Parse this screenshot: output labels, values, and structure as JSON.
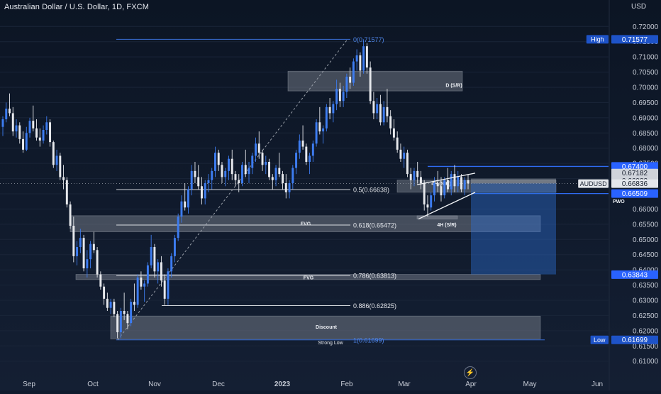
{
  "header": {
    "symbol_title": "Australian Dollar / U.S. Dollar, 1D, FXCM",
    "currency": "USD"
  },
  "chart_data": {
    "type": "candlestick",
    "y_range": [
      0.6055,
      0.7245
    ],
    "y_ticks": [
      "0.72000",
      "0.71500",
      "0.71000",
      "0.70500",
      "0.70000",
      "0.69500",
      "0.69000",
      "0.68500",
      "0.68000",
      "0.67500",
      "0.67000",
      "0.66500",
      "0.66000",
      "0.65500",
      "0.65000",
      "0.64500",
      "0.64000",
      "0.63500",
      "0.63000",
      "0.62500",
      "0.62000",
      "0.61500",
      "0.61000"
    ],
    "x_labels": [
      "Sep",
      "Oct",
      "Nov",
      "Dec",
      "2023",
      "Feb",
      "Mar",
      "Apr",
      "May",
      "Jun"
    ],
    "candles": [
      [
        0.687,
        0.6905,
        0.684,
        0.6895
      ],
      [
        0.6895,
        0.695,
        0.6885,
        0.693
      ],
      [
        0.693,
        0.698,
        0.6905,
        0.6915
      ],
      [
        0.6915,
        0.6935,
        0.684,
        0.6855
      ],
      [
        0.6855,
        0.6895,
        0.6835,
        0.6875
      ],
      [
        0.6875,
        0.6885,
        0.6815,
        0.683
      ],
      [
        0.683,
        0.6855,
        0.6785,
        0.6795
      ],
      [
        0.6795,
        0.687,
        0.679,
        0.685
      ],
      [
        0.685,
        0.69,
        0.6835,
        0.689
      ],
      [
        0.689,
        0.694,
        0.6855,
        0.6865
      ],
      [
        0.6865,
        0.6895,
        0.6825,
        0.6835
      ],
      [
        0.6835,
        0.6865,
        0.6805,
        0.6825
      ],
      [
        0.6825,
        0.6875,
        0.6815,
        0.686
      ],
      [
        0.686,
        0.6905,
        0.6845,
        0.6885
      ],
      [
        0.6885,
        0.6895,
        0.6805,
        0.682
      ],
      [
        0.682,
        0.6825,
        0.6735,
        0.6745
      ],
      [
        0.6745,
        0.6795,
        0.6725,
        0.6775
      ],
      [
        0.6775,
        0.6785,
        0.6695,
        0.6705
      ],
      [
        0.6705,
        0.6745,
        0.6665,
        0.6695
      ],
      [
        0.6695,
        0.6705,
        0.6605,
        0.6615
      ],
      [
        0.6615,
        0.6625,
        0.6535,
        0.6545
      ],
      [
        0.6545,
        0.6575,
        0.6425,
        0.6445
      ],
      [
        0.6445,
        0.6495,
        0.6415,
        0.6475
      ],
      [
        0.6475,
        0.6535,
        0.6455,
        0.6505
      ],
      [
        0.6505,
        0.6515,
        0.6395,
        0.6405
      ],
      [
        0.6405,
        0.6465,
        0.6375,
        0.6435
      ],
      [
        0.6435,
        0.6495,
        0.6405,
        0.6485
      ],
      [
        0.6485,
        0.6525,
        0.6455,
        0.6465
      ],
      [
        0.6465,
        0.6475,
        0.6375,
        0.6385
      ],
      [
        0.6385,
        0.6395,
        0.6335,
        0.6345
      ],
      [
        0.6345,
        0.6355,
        0.6285,
        0.6305
      ],
      [
        0.6305,
        0.6325,
        0.6265,
        0.6275
      ],
      [
        0.6275,
        0.6305,
        0.6255,
        0.6295
      ],
      [
        0.6295,
        0.6305,
        0.6245,
        0.6255
      ],
      [
        0.6255,
        0.6265,
        0.6175,
        0.6195
      ],
      [
        0.6195,
        0.6275,
        0.6175,
        0.6265
      ],
      [
        0.6265,
        0.6325,
        0.6235,
        0.6255
      ],
      [
        0.6255,
        0.6265,
        0.6205,
        0.6225
      ],
      [
        0.6225,
        0.6305,
        0.6215,
        0.6295
      ],
      [
        0.6295,
        0.6355,
        0.6265,
        0.6285
      ],
      [
        0.6285,
        0.6385,
        0.6275,
        0.6375
      ],
      [
        0.6375,
        0.6395,
        0.6335,
        0.6345
      ],
      [
        0.6345,
        0.6365,
        0.6295,
        0.6355
      ],
      [
        0.6355,
        0.6425,
        0.6345,
        0.6415
      ],
      [
        0.6415,
        0.6515,
        0.6405,
        0.6475
      ],
      [
        0.6475,
        0.6485,
        0.6375,
        0.6395
      ],
      [
        0.6395,
        0.6435,
        0.6355,
        0.6425
      ],
      [
        0.6425,
        0.6445,
        0.6345,
        0.6365
      ],
      [
        0.6365,
        0.6385,
        0.6285,
        0.6305
      ],
      [
        0.6305,
        0.6405,
        0.6285,
        0.6395
      ],
      [
        0.6395,
        0.6455,
        0.6375,
        0.6445
      ],
      [
        0.6445,
        0.6515,
        0.6425,
        0.6505
      ],
      [
        0.6505,
        0.6585,
        0.6495,
        0.6575
      ],
      [
        0.6575,
        0.6645,
        0.6555,
        0.6625
      ],
      [
        0.6625,
        0.6685,
        0.6595,
        0.6605
      ],
      [
        0.6605,
        0.6675,
        0.6585,
        0.6665
      ],
      [
        0.6665,
        0.6745,
        0.6645,
        0.6725
      ],
      [
        0.6725,
        0.6755,
        0.6685,
        0.6705
      ],
      [
        0.6705,
        0.6745,
        0.6665,
        0.6675
      ],
      [
        0.6675,
        0.6705,
        0.6615,
        0.6635
      ],
      [
        0.6635,
        0.6695,
        0.6615,
        0.6685
      ],
      [
        0.6685,
        0.6715,
        0.6655,
        0.6695
      ],
      [
        0.6695,
        0.6735,
        0.6665,
        0.6725
      ],
      [
        0.6725,
        0.6805,
        0.6705,
        0.6785
      ],
      [
        0.6785,
        0.6795,
        0.6725,
        0.6745
      ],
      [
        0.6745,
        0.6755,
        0.6685,
        0.6705
      ],
      [
        0.6705,
        0.6735,
        0.6675,
        0.6725
      ],
      [
        0.6725,
        0.6775,
        0.6695,
        0.6765
      ],
      [
        0.6765,
        0.6795,
        0.6695,
        0.6715
      ],
      [
        0.6715,
        0.6725,
        0.6675,
        0.6695
      ],
      [
        0.6695,
        0.6715,
        0.6655,
        0.6685
      ],
      [
        0.6685,
        0.6755,
        0.6675,
        0.6745
      ],
      [
        0.6745,
        0.6795,
        0.6705,
        0.6715
      ],
      [
        0.6715,
        0.6755,
        0.6685,
        0.6735
      ],
      [
        0.6735,
        0.6785,
        0.6715,
        0.6775
      ],
      [
        0.6775,
        0.6835,
        0.6755,
        0.6815
      ],
      [
        0.6815,
        0.6855,
        0.6765,
        0.6785
      ],
      [
        0.6785,
        0.6795,
        0.6725,
        0.6745
      ],
      [
        0.6745,
        0.6775,
        0.6715,
        0.6755
      ],
      [
        0.6755,
        0.6765,
        0.6695,
        0.6705
      ],
      [
        0.6705,
        0.6715,
        0.6665,
        0.6695
      ],
      [
        0.6695,
        0.6745,
        0.6675,
        0.6735
      ],
      [
        0.6735,
        0.6785,
        0.6705,
        0.6715
      ],
      [
        0.6715,
        0.6725,
        0.6665,
        0.6685
      ],
      [
        0.6685,
        0.6715,
        0.6635,
        0.6655
      ],
      [
        0.6655,
        0.6695,
        0.6635,
        0.6685
      ],
      [
        0.6685,
        0.6745,
        0.6665,
        0.6735
      ],
      [
        0.6735,
        0.6795,
        0.6715,
        0.6785
      ],
      [
        0.6785,
        0.6845,
        0.6765,
        0.6825
      ],
      [
        0.6825,
        0.6875,
        0.6795,
        0.6805
      ],
      [
        0.6805,
        0.6815,
        0.6745,
        0.6755
      ],
      [
        0.6755,
        0.6785,
        0.6715,
        0.6775
      ],
      [
        0.6775,
        0.6825,
        0.6755,
        0.6815
      ],
      [
        0.6815,
        0.6895,
        0.6805,
        0.6885
      ],
      [
        0.6885,
        0.6935,
        0.6845,
        0.6855
      ],
      [
        0.6855,
        0.6875,
        0.6815,
        0.6865
      ],
      [
        0.6865,
        0.6945,
        0.6855,
        0.6935
      ],
      [
        0.6935,
        0.6965,
        0.6895,
        0.6915
      ],
      [
        0.6915,
        0.6955,
        0.6885,
        0.6945
      ],
      [
        0.6945,
        0.7025,
        0.6925,
        0.6995
      ],
      [
        0.6995,
        0.7015,
        0.6935,
        0.6955
      ],
      [
        0.6955,
        0.7005,
        0.6935,
        0.6985
      ],
      [
        0.6985,
        0.7045,
        0.6965,
        0.7035
      ],
      [
        0.7035,
        0.7065,
        0.6995,
        0.7015
      ],
      [
        0.7015,
        0.7095,
        0.7005,
        0.7085
      ],
      [
        0.7085,
        0.7125,
        0.7055,
        0.7105
      ],
      [
        0.7105,
        0.7115,
        0.7035,
        0.7055
      ],
      [
        0.7055,
        0.7158,
        0.7045,
        0.7135
      ],
      [
        0.7135,
        0.7145,
        0.7045,
        0.7065
      ],
      [
        0.7065,
        0.7085,
        0.6945,
        0.6955
      ],
      [
        0.6955,
        0.6985,
        0.6895,
        0.6915
      ],
      [
        0.6915,
        0.6965,
        0.6895,
        0.6945
      ],
      [
        0.6945,
        0.6975,
        0.6875,
        0.6885
      ],
      [
        0.6885,
        0.6955,
        0.6875,
        0.6935
      ],
      [
        0.6935,
        0.6995,
        0.6885,
        0.6905
      ],
      [
        0.6905,
        0.6925,
        0.6845,
        0.6865
      ],
      [
        0.6865,
        0.6895,
        0.6825,
        0.6835
      ],
      [
        0.6835,
        0.6855,
        0.6785,
        0.6795
      ],
      [
        0.6795,
        0.6815,
        0.6755,
        0.6765
      ],
      [
        0.6765,
        0.6805,
        0.6735,
        0.6785
      ],
      [
        0.6785,
        0.6795,
        0.6705,
        0.6715
      ],
      [
        0.6715,
        0.6735,
        0.6665,
        0.6695
      ],
      [
        0.6695,
        0.6735,
        0.6675,
        0.6725
      ],
      [
        0.6725,
        0.6755,
        0.6685,
        0.6705
      ],
      [
        0.6705,
        0.6725,
        0.6665,
        0.6685
      ],
      [
        0.6685,
        0.6695,
        0.6595,
        0.6615
      ],
      [
        0.6615,
        0.6645,
        0.6575,
        0.6605
      ],
      [
        0.6605,
        0.6655,
        0.6595,
        0.6645
      ],
      [
        0.6645,
        0.6705,
        0.6625,
        0.6685
      ],
      [
        0.6685,
        0.6725,
        0.6655,
        0.6675
      ],
      [
        0.6675,
        0.6705,
        0.6625,
        0.6645
      ],
      [
        0.6645,
        0.6705,
        0.6635,
        0.6695
      ],
      [
        0.6695,
        0.6735,
        0.6655,
        0.6665
      ],
      [
        0.6665,
        0.6725,
        0.6645,
        0.6715
      ],
      [
        0.6715,
        0.6745,
        0.6655,
        0.6675
      ],
      [
        0.6675,
        0.6725,
        0.6655,
        0.6705
      ],
      [
        0.6705,
        0.6715,
        0.6655,
        0.6665
      ],
      [
        0.6665,
        0.6705,
        0.6645,
        0.6695
      ],
      [
        0.6695,
        0.6715,
        0.6665,
        0.6684
      ]
    ],
    "annotations": {
      "fib_levels": [
        {
          "label": "0(0.71577)",
          "price": 0.71577
        },
        {
          "label": "0.5(0.66638)",
          "price": 0.66638
        },
        {
          "label": "0.618(0.65472)",
          "price": 0.65472
        },
        {
          "label": "0.786(0.63813)",
          "price": 0.63813
        },
        {
          "label": "0.886(0.62825)",
          "price": 0.62825
        },
        {
          "label": "1(0.61699)",
          "price": 0.61699
        }
      ],
      "zones": [
        {
          "label": "D (S/R)",
          "top": 0.7053,
          "bottom": 0.6988
        },
        {
          "label": "FVG",
          "top": 0.6578,
          "bottom": 0.6525
        },
        {
          "label": "FVG",
          "top": 0.6385,
          "bottom": 0.6368
        },
        {
          "label": "Discount",
          "top": 0.6248,
          "bottom": 0.6173
        },
        {
          "label": "4H (S/R)",
          "top": 0.6695,
          "bottom": 0.6655
        },
        {
          "label": "4H (S/R)",
          "top": 0.6578,
          "bottom": 0.6567
        }
      ],
      "text_labels": [
        "Strong Low",
        "PWO"
      ],
      "horizontal_levels": [
        0.674,
        0.66509
      ],
      "position_box": {
        "entry": 0.6684,
        "stop": 0.67,
        "target": 0.6385
      }
    },
    "price_tags": [
      {
        "label": "High",
        "value": "0.71577",
        "price": 0.71577,
        "color": "#1e53c8"
      },
      {
        "label": "",
        "value": "0.67400",
        "price": 0.674,
        "color": "#2962ff"
      },
      {
        "label": "",
        "value": "0.67182",
        "price": 0.67182,
        "color": "#cfd3da"
      },
      {
        "label": "",
        "value": "0.66932",
        "price": 0.66932,
        "color": "#cfd3da"
      },
      {
        "label": "AUDUSD",
        "value": "0.66836",
        "price": 0.66836,
        "color": "#e4e7ec"
      },
      {
        "label": "PWO",
        "value": "0.66509",
        "price": 0.66509,
        "color": "#2962ff"
      },
      {
        "label": "",
        "value": "0.63843",
        "price": 0.63843,
        "color": "#2962ff"
      },
      {
        "label": "Low",
        "value": "0.61699",
        "price": 0.61699,
        "color": "#1e53c8"
      }
    ],
    "colors": {
      "up": "#3d7cf0",
      "down": "#e6e8ec",
      "background": "#0f1a2c",
      "zone": "#8a8f99"
    }
  }
}
